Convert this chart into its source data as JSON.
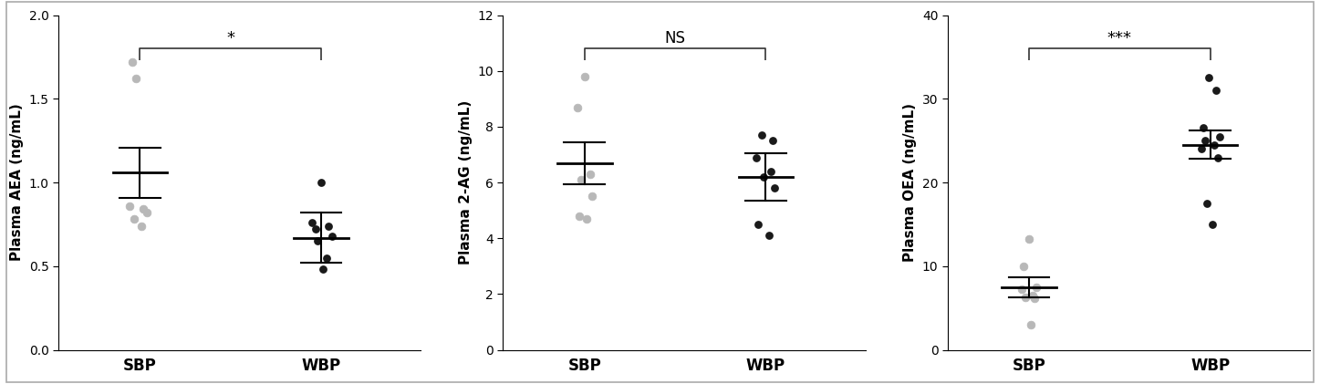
{
  "panels": [
    {
      "ylabel": "Plasma AEA (ng/mL)",
      "ylim": [
        0,
        2.0
      ],
      "yticks": [
        0.0,
        0.5,
        1.0,
        1.5,
        2.0
      ],
      "sig_label": "*",
      "sbp_dots_x": [
        -0.04,
        -0.02,
        -0.06,
        0.02,
        0.04,
        -0.03,
        0.01
      ],
      "sbp_dots_y": [
        1.72,
        1.62,
        0.86,
        0.84,
        0.82,
        0.78,
        0.74
      ],
      "wbp_dots_x": [
        0.0,
        -0.05,
        0.04,
        -0.03,
        0.06,
        -0.02,
        0.03,
        0.01
      ],
      "wbp_dots_y": [
        1.0,
        0.76,
        0.74,
        0.72,
        0.68,
        0.65,
        0.55,
        0.48
      ],
      "sbp_mean": 1.06,
      "sbp_sem_low": 0.91,
      "sbp_sem_high": 1.21,
      "wbp_mean": 0.67,
      "wbp_sem_low": 0.52,
      "wbp_sem_high": 0.82
    },
    {
      "ylabel": "Plasma 2-AG (ng/mL)",
      "ylim": [
        0,
        12
      ],
      "yticks": [
        0,
        2,
        4,
        6,
        8,
        10,
        12
      ],
      "sig_label": "NS",
      "sbp_dots_x": [
        0.0,
        -0.04,
        0.03,
        -0.02,
        0.04,
        -0.03,
        0.01
      ],
      "sbp_dots_y": [
        9.8,
        8.7,
        6.3,
        6.1,
        5.5,
        4.8,
        4.7
      ],
      "wbp_dots_x": [
        -0.02,
        0.04,
        -0.05,
        0.03,
        -0.01,
        0.05,
        -0.04,
        0.02
      ],
      "wbp_dots_y": [
        7.7,
        7.5,
        6.9,
        6.4,
        6.2,
        5.8,
        4.5,
        4.1
      ],
      "sbp_mean": 6.7,
      "sbp_sem_low": 5.95,
      "sbp_sem_high": 7.45,
      "wbp_mean": 6.2,
      "wbp_sem_low": 5.35,
      "wbp_sem_high": 7.05
    },
    {
      "ylabel": "Plasma OEA (ng/mL)",
      "ylim": [
        0,
        40
      ],
      "yticks": [
        0,
        10,
        20,
        30,
        40
      ],
      "sig_label": "***",
      "sbp_dots_x": [
        0.0,
        -0.03,
        0.04,
        -0.04,
        0.02,
        -0.02,
        0.03,
        0.01
      ],
      "sbp_dots_y": [
        13.3,
        10.0,
        7.5,
        7.3,
        6.5,
        6.3,
        6.2,
        3.0
      ],
      "wbp_dots_x": [
        -0.01,
        0.03,
        -0.04,
        0.05,
        -0.03,
        0.02,
        -0.05,
        0.04,
        -0.02,
        0.01
      ],
      "wbp_dots_y": [
        32.5,
        31.0,
        26.5,
        25.5,
        25.0,
        24.5,
        24.0,
        23.0,
        17.5,
        15.0
      ],
      "sbp_mean": 7.5,
      "sbp_sem_low": 6.3,
      "sbp_sem_high": 8.7,
      "wbp_mean": 24.5,
      "wbp_sem_low": 22.8,
      "wbp_sem_high": 26.2
    }
  ],
  "sbp_color": "#b8b8b8",
  "wbp_color": "#1a1a1a",
  "dot_size": 40,
  "bracket_color": "#333333",
  "xlabel_sbp": "SBP",
  "xlabel_wbp": "WBP",
  "background_color": "#ffffff",
  "tick_fontsize": 10,
  "label_fontsize": 11,
  "sig_fontsize": 13,
  "figwidth": 14.47,
  "figheight": 4.21
}
